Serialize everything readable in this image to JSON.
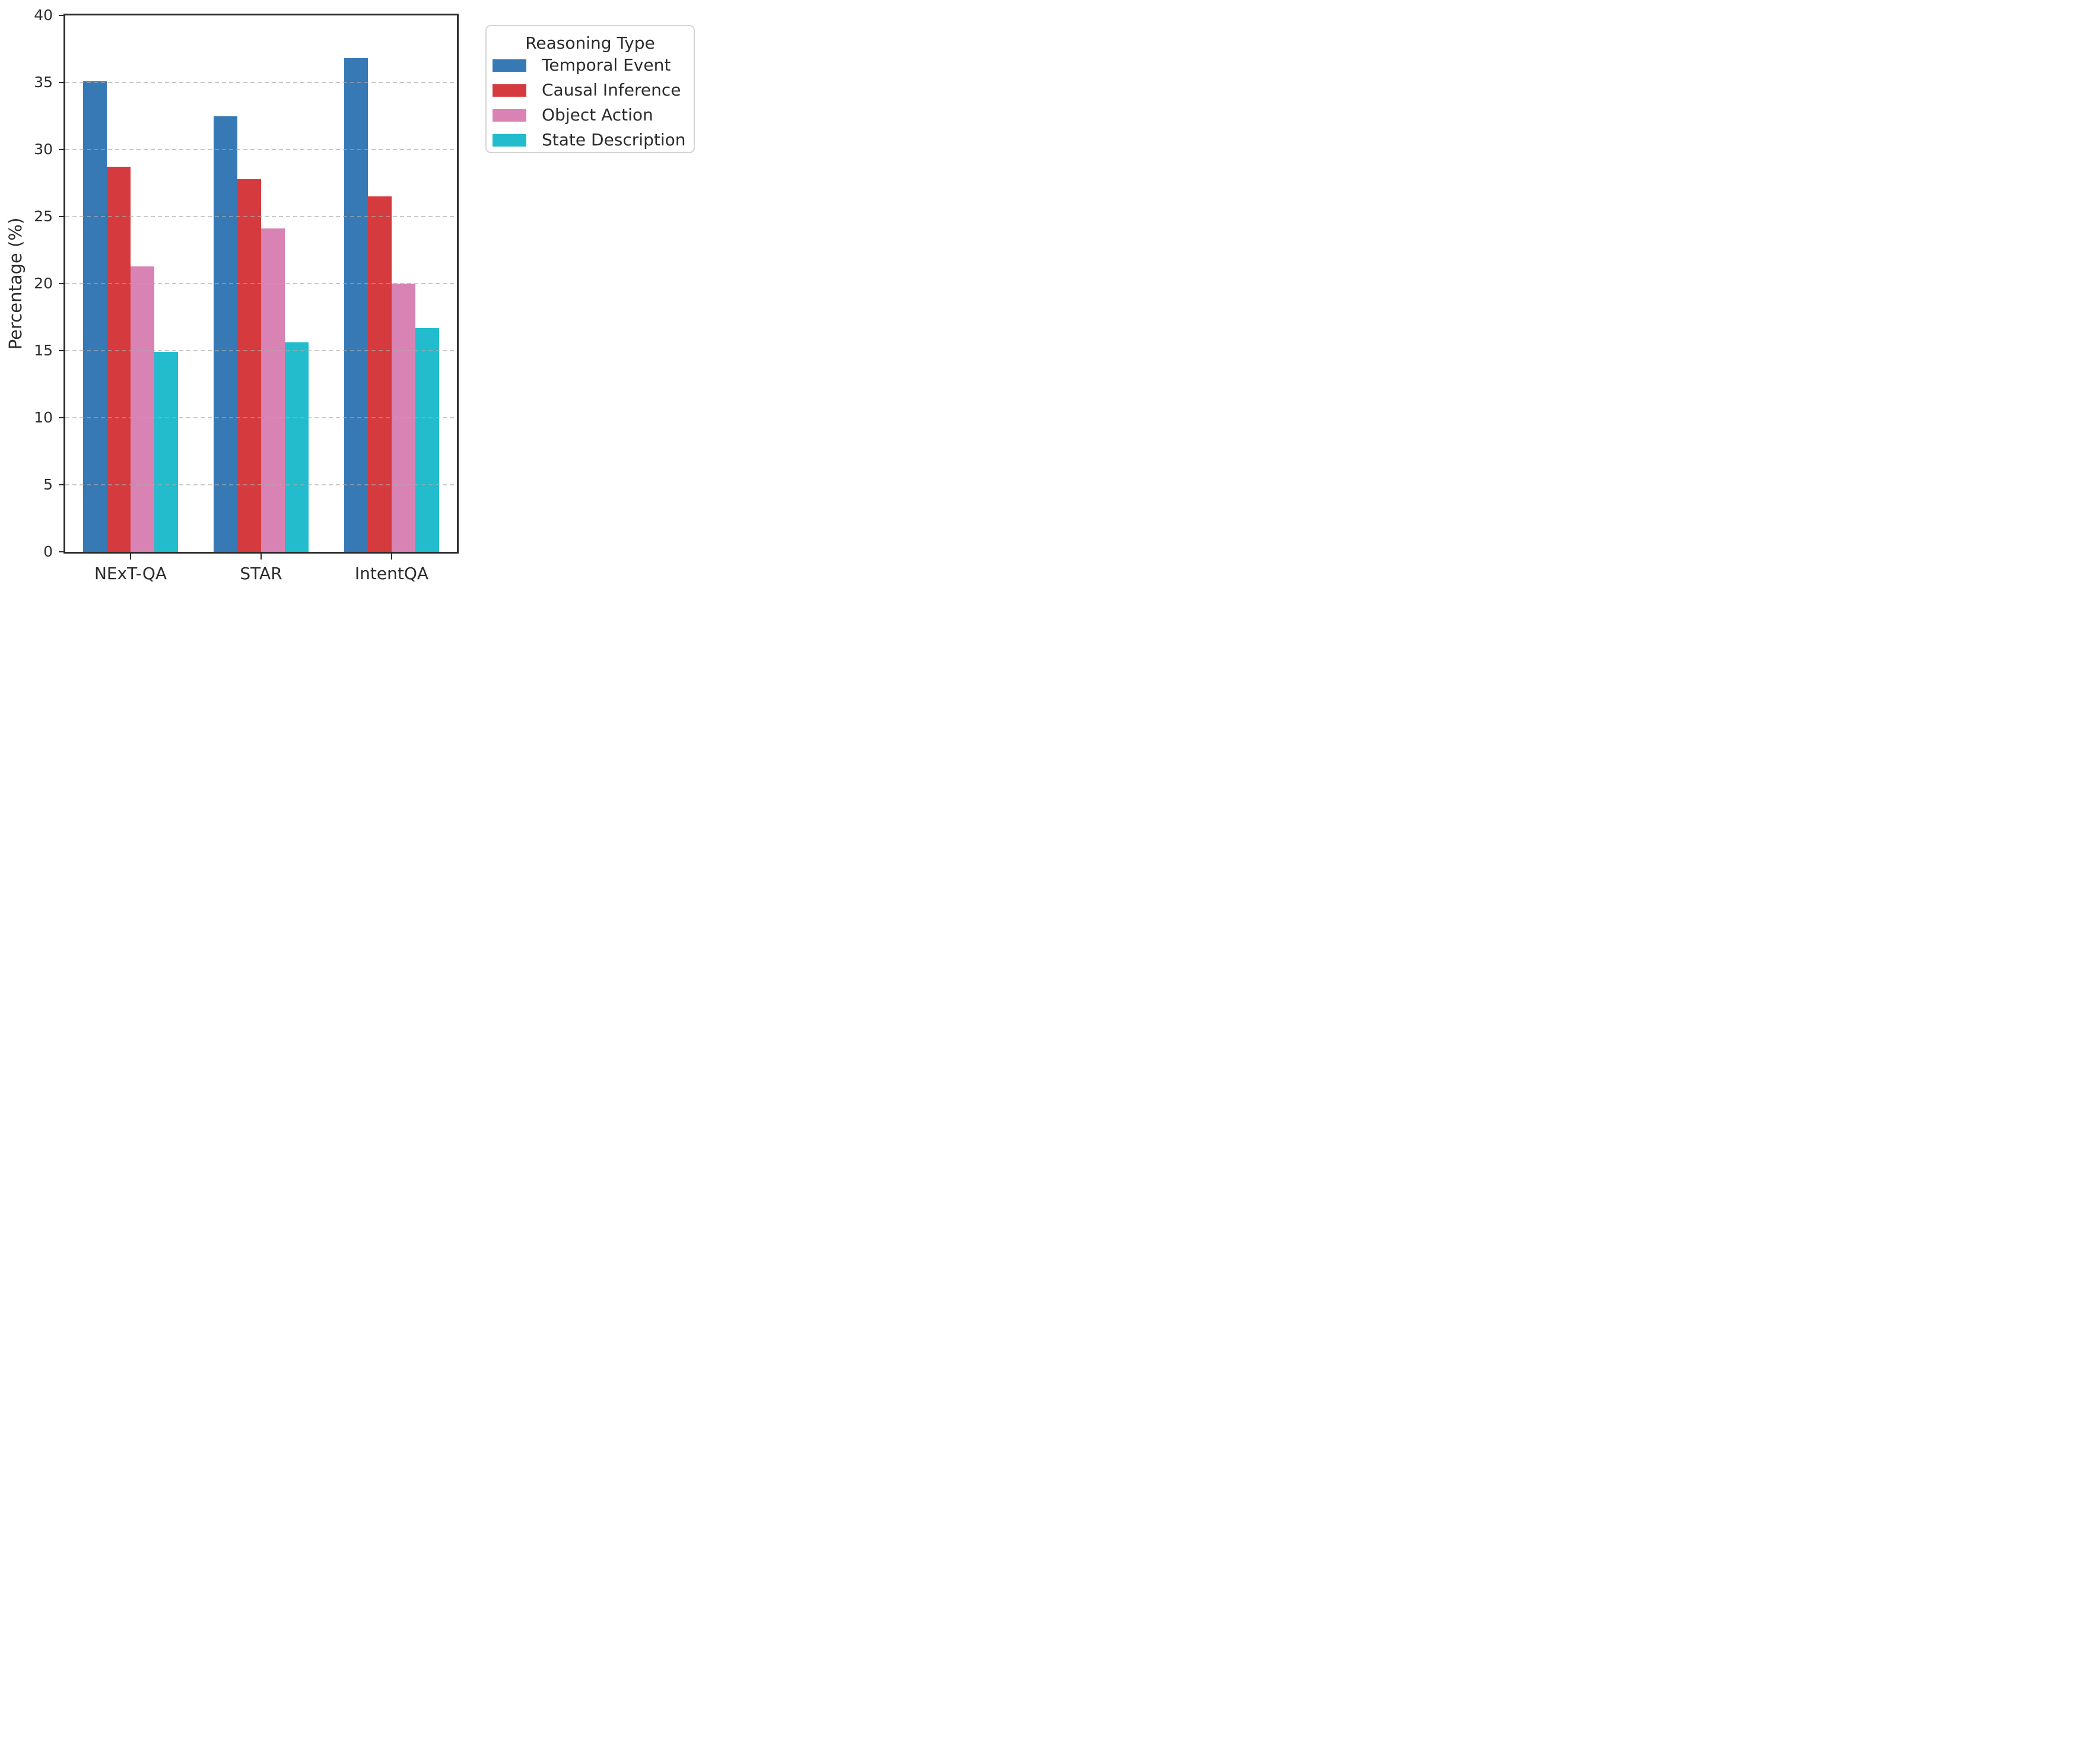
{
  "chart_data": {
    "type": "bar",
    "title": "",
    "xlabel": "",
    "ylabel": "Percentage (%)",
    "ylim": [
      0,
      40
    ],
    "yticks": [
      0,
      5,
      10,
      15,
      20,
      25,
      30,
      35,
      40
    ],
    "grid": "horizontal dashed gridlines at each y tick, drawn over bars",
    "legend_title": "Reasoning Type",
    "legend_position": "upper right, outside plot area",
    "categories": [
      "NExT-QA",
      "STAR",
      "IntentQA"
    ],
    "series": [
      {
        "name": "Temporal Event",
        "color": "#3779b4",
        "values": [
          35.1,
          32.5,
          36.8
        ]
      },
      {
        "name": "Causal Inference",
        "color": "#d53a3e",
        "values": [
          28.7,
          27.8,
          26.5
        ]
      },
      {
        "name": "Object Action",
        "color": "#d883b4",
        "values": [
          21.3,
          24.1,
          20.0
        ]
      },
      {
        "name": "State Description",
        "color": "#22bccd",
        "values": [
          14.9,
          15.6,
          16.7
        ]
      }
    ]
  },
  "style": {
    "background": "#ffffff",
    "spine_color": "#2b2b2b",
    "text_color": "#2b2b2b",
    "grid_color": "#aaaaaa",
    "legend_border_color": "#d4d4d4"
  }
}
